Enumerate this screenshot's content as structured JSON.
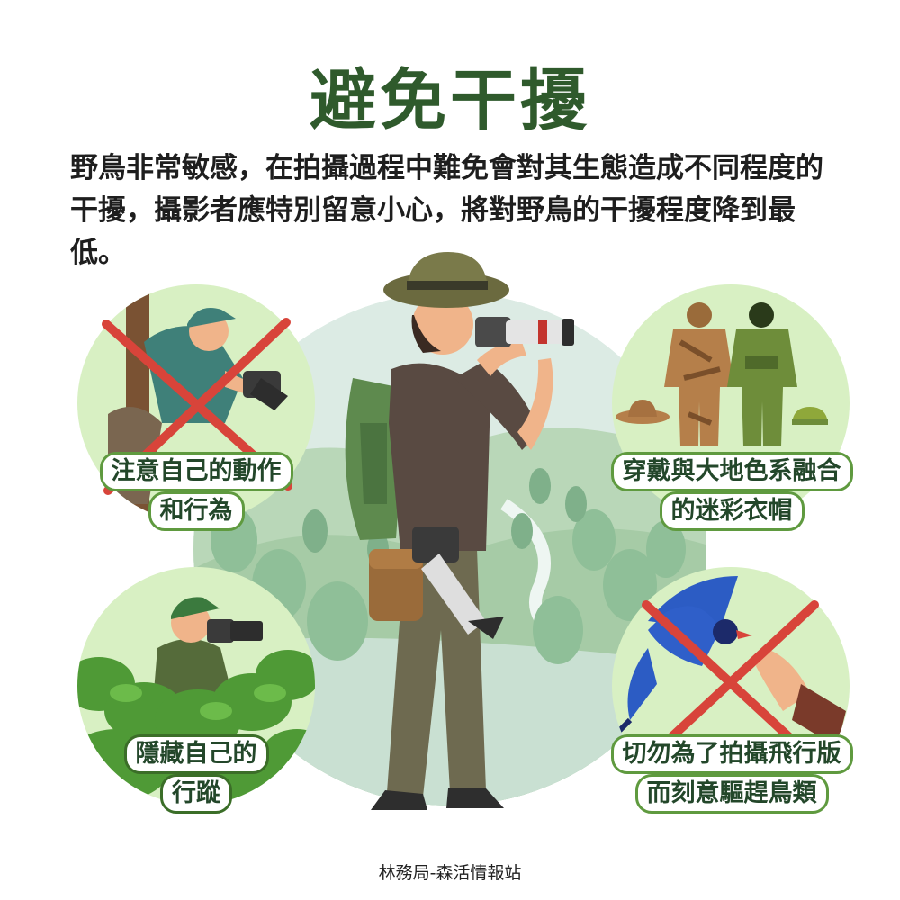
{
  "poster": {
    "title": "避免干擾",
    "intro": "野鳥非常敏感，在拍攝過程中難免會對其生態造成不同程度的干擾，攝影者應特別留意小心，將對野鳥的干擾程度降到最低。",
    "footer": "林務局-森活情報站"
  },
  "tips": [
    {
      "line1": "注意自己的動作",
      "line2": "和行為",
      "crossed": true,
      "icon": "photographer-peeking-icon"
    },
    {
      "line1": "穿戴與大地色系融合",
      "line2": "的迷彩衣帽",
      "crossed": false,
      "icon": "camouflage-clothing-icon"
    },
    {
      "line1": "隱藏自己的",
      "line2": "行蹤",
      "crossed": false,
      "icon": "hidden-photographer-icon"
    },
    {
      "line1": "切勿為了拍攝飛行版",
      "line2": "而刻意驅趕鳥類",
      "crossed": true,
      "icon": "blue-magpie-icon"
    }
  ],
  "colors": {
    "title": "#2f5a2c",
    "circle_bg": "#d8f0c3",
    "cross": "#d8443a",
    "scene_bg": "#cfe5d8"
  }
}
